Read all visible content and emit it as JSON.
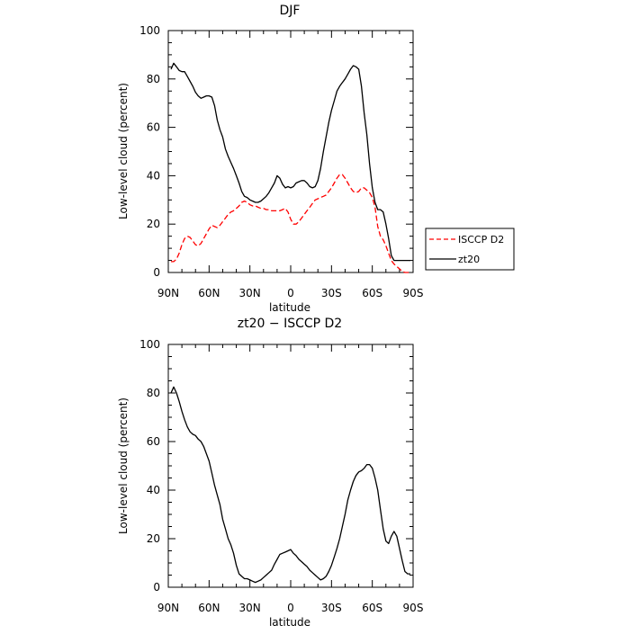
{
  "chart_data": [
    {
      "type": "line",
      "title": "DJF",
      "xlabel": "latitude",
      "ylabel": "Low-level cloud (percent)",
      "xlim": [
        90,
        -90
      ],
      "ylim": [
        0,
        100
      ],
      "xticks": [
        90,
        60,
        30,
        0,
        -30,
        -60,
        -90
      ],
      "xtick_labels": [
        "90N",
        "60N",
        "30N",
        "0",
        "30S",
        "60S",
        "90S"
      ],
      "yticks": [
        0,
        20,
        40,
        60,
        80,
        100
      ],
      "ytick_labels": [
        "0",
        "20",
        "40",
        "60",
        "80",
        "100"
      ],
      "legend_position": "right",
      "series": [
        {
          "name": "ISCCP D2",
          "color": "#ff0000",
          "dashed": true,
          "x": [
            88,
            86,
            84,
            82,
            80,
            78,
            76,
            74,
            72,
            70,
            68,
            66,
            64,
            62,
            60,
            58,
            56,
            54,
            52,
            50,
            48,
            46,
            44,
            42,
            40,
            38,
            36,
            34,
            32,
            30,
            28,
            26,
            24,
            22,
            20,
            18,
            16,
            14,
            12,
            10,
            8,
            6,
            4,
            2,
            0,
            -2,
            -4,
            -6,
            -8,
            -10,
            -12,
            -14,
            -16,
            -18,
            -20,
            -22,
            -24,
            -26,
            -28,
            -30,
            -32,
            -34,
            -36,
            -38,
            -40,
            -42,
            -44,
            -46,
            -48,
            -50,
            -52,
            -54,
            -56,
            -58,
            -60,
            -62,
            -64,
            -66,
            -68,
            -70,
            -72,
            -74,
            -76,
            -78,
            -80,
            -82,
            -84,
            -86,
            -88
          ],
          "y": [
            4.5,
            4.5,
            5.5,
            8,
            11.5,
            14,
            15,
            14.5,
            13,
            11.5,
            11,
            12,
            14,
            16,
            18,
            19.5,
            19,
            18.5,
            19.5,
            21,
            22.5,
            24,
            25,
            25.5,
            26.5,
            27.5,
            29,
            29.5,
            29,
            28,
            27.5,
            27.5,
            27,
            26.5,
            26.5,
            26,
            26,
            25.5,
            25.5,
            25.5,
            25.5,
            26,
            26.5,
            25,
            22,
            20,
            20,
            21,
            22.5,
            24,
            25.5,
            27,
            28.5,
            30,
            30.5,
            31,
            31.5,
            32,
            33.5,
            35,
            37,
            39,
            40.5,
            40.5,
            39,
            37,
            35,
            33.5,
            33,
            33.5,
            35,
            35,
            34,
            33,
            31,
            27,
            19,
            15,
            13.5,
            11,
            8,
            5,
            3.5,
            2.5,
            1.5,
            0.5,
            0,
            0,
            0
          ]
        },
        {
          "name": "zt20",
          "color": "#000000",
          "dashed": false,
          "x": [
            88,
            86,
            84,
            82,
            80,
            78,
            76,
            74,
            72,
            70,
            68,
            66,
            64,
            62,
            60,
            58,
            56,
            54,
            52,
            50,
            48,
            46,
            44,
            42,
            40,
            38,
            36,
            34,
            32,
            30,
            28,
            26,
            24,
            22,
            20,
            18,
            16,
            14,
            12,
            10,
            8,
            6,
            4,
            2,
            0,
            -2,
            -4,
            -6,
            -8,
            -10,
            -12,
            -14,
            -16,
            -18,
            -20,
            -22,
            -24,
            -26,
            -28,
            -30,
            -32,
            -34,
            -36,
            -38,
            -40,
            -42,
            -44,
            -46,
            -48,
            -50,
            -52,
            -54,
            -56,
            -58,
            -60,
            -62,
            -64,
            -66,
            -68,
            -70,
            -72,
            -74,
            -76,
            -78,
            -80,
            -82,
            -84,
            -86,
            -88
          ],
          "y": [
            84,
            86.5,
            85,
            83.5,
            83,
            83,
            81,
            79,
            77,
            74.5,
            73,
            72,
            72.5,
            73,
            73,
            72.5,
            69,
            63,
            59,
            56,
            51,
            48,
            45.5,
            43,
            40,
            37,
            33.5,
            31.5,
            31,
            30,
            29.5,
            29,
            29,
            29.5,
            30.5,
            31.5,
            33,
            35,
            37,
            40,
            39,
            36.5,
            35,
            35.5,
            35,
            35.5,
            37,
            37.5,
            38,
            38,
            37,
            35.5,
            35,
            35.5,
            38,
            43,
            50,
            56,
            62,
            67,
            71,
            75,
            77,
            78.5,
            80,
            82,
            84,
            85.5,
            85,
            84,
            77,
            66,
            57,
            45,
            35,
            29,
            26,
            26,
            25,
            20,
            14,
            7,
            5,
            5,
            5,
            5,
            5,
            5,
            5
          ]
        }
      ]
    },
    {
      "type": "line",
      "title": "zt20 − ISCCP D2",
      "xlabel": "latitude",
      "ylabel": "Low-level cloud (percent)",
      "xlim": [
        90,
        -90
      ],
      "ylim": [
        0,
        100
      ],
      "xticks": [
        90,
        60,
        30,
        0,
        -30,
        -60,
        -90
      ],
      "xtick_labels": [
        "90N",
        "60N",
        "30N",
        "0",
        "30S",
        "60S",
        "90S"
      ],
      "yticks": [
        0,
        20,
        40,
        60,
        80,
        100
      ],
      "ytick_labels": [
        "0",
        "20",
        "40",
        "60",
        "80",
        "100"
      ],
      "series": [
        {
          "color": "#000000",
          "dashed": false,
          "x": [
            88,
            86,
            84,
            82,
            80,
            78,
            76,
            74,
            72,
            70,
            68,
            66,
            64,
            62,
            60,
            58,
            56,
            54,
            52,
            50,
            48,
            46,
            44,
            42,
            40,
            38,
            36,
            34,
            32,
            30,
            28,
            26,
            24,
            22,
            20,
            18,
            16,
            14,
            12,
            10,
            8,
            6,
            4,
            2,
            0,
            -2,
            -4,
            -6,
            -8,
            -10,
            -12,
            -14,
            -16,
            -18,
            -20,
            -22,
            -24,
            -26,
            -28,
            -30,
            -32,
            -34,
            -36,
            -38,
            -40,
            -42,
            -44,
            -46,
            -48,
            -50,
            -52,
            -54,
            -56,
            -58,
            -60,
            -62,
            -64,
            -66,
            -68,
            -70,
            -72,
            -74,
            -76,
            -78,
            -80,
            -82,
            -84,
            -86,
            -88
          ],
          "y": [
            80,
            82.5,
            80,
            76.5,
            72.5,
            69,
            66,
            64,
            63,
            62.5,
            61,
            60,
            58,
            55,
            52,
            47,
            42,
            38,
            34,
            28,
            24,
            20,
            17.5,
            14,
            9,
            5.5,
            4.5,
            3.5,
            3.5,
            3,
            2.5,
            2,
            2.5,
            3,
            4,
            5,
            6,
            7,
            9.5,
            11.5,
            13.5,
            14,
            14.5,
            15,
            15.5,
            14,
            13,
            11.5,
            10.5,
            9.5,
            8.5,
            7,
            6,
            5,
            4,
            3,
            3.5,
            4.5,
            6.5,
            9,
            12.5,
            16,
            20,
            25,
            30,
            36,
            40,
            43.5,
            46,
            47.5,
            48,
            49,
            50.5,
            50.5,
            49,
            45,
            40,
            32,
            24,
            19,
            18,
            21,
            23,
            21,
            16,
            11,
            6.5,
            5.5,
            5.5
          ]
        }
      ]
    }
  ]
}
